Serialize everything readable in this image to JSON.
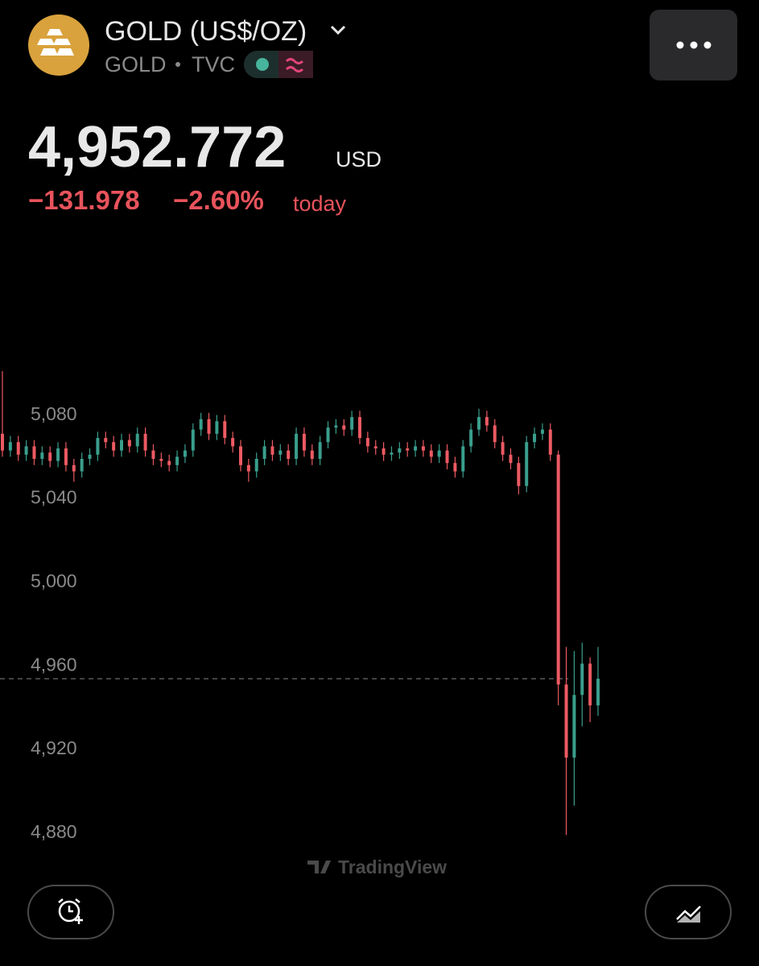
{
  "header": {
    "title": "GOLD (US$/OZ)",
    "symbol": "GOLD",
    "exchange": "TVC",
    "price": {
      "value": 4952.772,
      "label": "4,952.772"
    },
    "currency": "USD",
    "change": "−131.978",
    "change_pct": "−2.60%",
    "period": "today"
  },
  "watermark": "TradingView",
  "chart_data": {
    "type": "candlestick",
    "up_color": "#3a9e8c",
    "down_color": "#ec5a62",
    "ylim": [
      4870,
      5105
    ],
    "yticks": [
      {
        "value": 4880,
        "label": "4,880"
      },
      {
        "value": 4920,
        "label": "4,920"
      },
      {
        "value": 4960,
        "label": "4,960"
      },
      {
        "value": 5000,
        "label": "5,000"
      },
      {
        "value": 5040,
        "label": "5,040"
      },
      {
        "value": 5080,
        "label": "5,080"
      }
    ],
    "open": [
      5070,
      5062,
      5066,
      5060,
      5064,
      5058,
      5061,
      5057,
      5063,
      5055,
      5052,
      5058,
      5060,
      5068,
      5066,
      5062,
      5067,
      5064,
      5070,
      5062,
      5058,
      5057,
      5055,
      5059,
      5062,
      5072,
      5077,
      5070,
      5076,
      5068,
      5064,
      5055,
      5052,
      5058,
      5064,
      5060,
      5062,
      5058,
      5070,
      5062,
      5058,
      5066,
      5073,
      5074,
      5072,
      5078,
      5068,
      5064,
      5063,
      5060,
      5061,
      5063,
      5062,
      5064,
      5062,
      5059,
      5062,
      5056,
      5052,
      5064,
      5072,
      5078,
      5074,
      5066,
      5060,
      5056,
      5045,
      5066,
      5070,
      5072,
      5060,
      4950,
      4915,
      4945,
      4960,
      4940
    ],
    "high": [
      5100,
      5069,
      5069,
      5067,
      5067,
      5064,
      5064,
      5066,
      5066,
      5058,
      5061,
      5063,
      5071,
      5071,
      5069,
      5070,
      5070,
      5073,
      5073,
      5065,
      5061,
      5060,
      5062,
      5065,
      5075,
      5080,
      5080,
      5079,
      5079,
      5071,
      5067,
      5058,
      5061,
      5067,
      5067,
      5065,
      5065,
      5073,
      5073,
      5065,
      5069,
      5076,
      5077,
      5077,
      5081,
      5081,
      5071,
      5067,
      5066,
      5064,
      5066,
      5066,
      5067,
      5067,
      5065,
      5065,
      5065,
      5059,
      5067,
      5075,
      5082,
      5081,
      5077,
      5069,
      5063,
      5059,
      5069,
      5073,
      5075,
      5075,
      5062,
      4968,
      4966,
      4970,
      4963,
      4968
    ],
    "low": [
      5059,
      5059,
      5057,
      5057,
      5055,
      5055,
      5054,
      5054,
      5052,
      5047,
      5049,
      5055,
      5057,
      5063,
      5059,
      5059,
      5061,
      5061,
      5059,
      5055,
      5054,
      5052,
      5052,
      5056,
      5059,
      5069,
      5067,
      5067,
      5065,
      5061,
      5052,
      5047,
      5049,
      5055,
      5057,
      5057,
      5055,
      5055,
      5059,
      5055,
      5055,
      5063,
      5070,
      5069,
      5069,
      5065,
      5061,
      5060,
      5057,
      5057,
      5058,
      5059,
      5059,
      5059,
      5056,
      5056,
      5053,
      5049,
      5049,
      5061,
      5069,
      5071,
      5063,
      5057,
      5053,
      5041,
      5042,
      5063,
      5067,
      5057,
      4940,
      4878,
      4892,
      4930,
      4932,
      4935
    ],
    "close": [
      5062,
      5066,
      5060,
      5064,
      5058,
      5061,
      5057,
      5063,
      5055,
      5052,
      5058,
      5060,
      5068,
      5066,
      5062,
      5067,
      5064,
      5070,
      5062,
      5058,
      5057,
      5055,
      5059,
      5062,
      5072,
      5077,
      5070,
      5076,
      5068,
      5064,
      5055,
      5052,
      5058,
      5064,
      5060,
      5062,
      5058,
      5070,
      5062,
      5058,
      5066,
      5073,
      5074,
      5072,
      5078,
      5068,
      5064,
      5063,
      5060,
      5061,
      5063,
      5062,
      5064,
      5062,
      5059,
      5062,
      5056,
      5052,
      5064,
      5072,
      5078,
      5074,
      5066,
      5060,
      5056,
      5045,
      5066,
      5070,
      5072,
      5060,
      4950,
      4915,
      4945,
      4960,
      4940,
      4952.772
    ]
  }
}
